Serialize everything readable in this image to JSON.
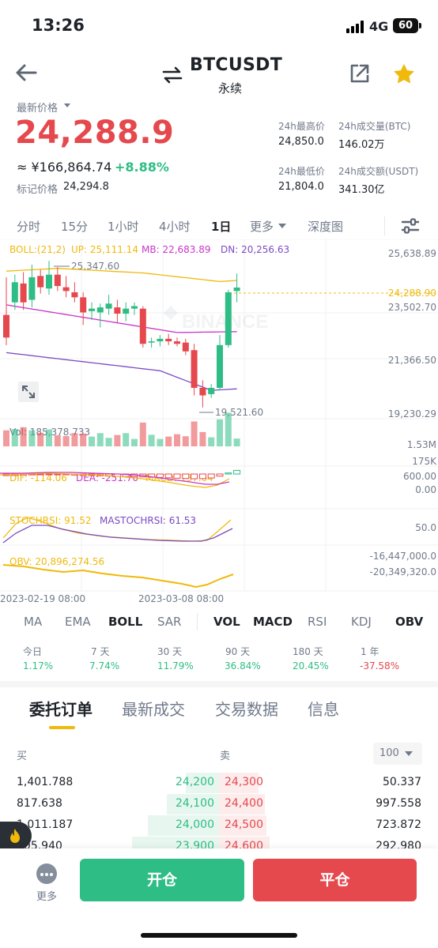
{
  "status": {
    "time": "13:26",
    "network": "4G",
    "battery": "60"
  },
  "header": {
    "pair": "BTCUSDT",
    "type": "永续"
  },
  "price": {
    "label": "最新价格",
    "last": "24,288.9",
    "cny": "≈ ¥166,864.74",
    "change": "+8.88%",
    "mark_label": "标记价格",
    "mark_value": "24,294.8"
  },
  "stats": {
    "high_label": "24h最高价",
    "high": "24,850.0",
    "vol_btc_label": "24h成交量(BTC)",
    "vol_btc": "146.02万",
    "low_label": "24h最低价",
    "low": "21,804.0",
    "vol_usdt_label": "24h成交额(USDT)",
    "vol_usdt": "341.30亿"
  },
  "timeframes": [
    "分时",
    "15分",
    "1小时",
    "4小时",
    "1日",
    "更多",
    "深度图"
  ],
  "chart": {
    "boll_label": "BOLL:(21,2)",
    "up": "UP: 25,111.14",
    "mb": "MB: 22,683.89",
    "dn": "DN: 20,256.63",
    "axis": [
      "25,638.89",
      "24,288.90",
      "23,502.70",
      "21,366.50",
      "19,230.29"
    ],
    "hi_annot": "25,347.60",
    "lo_annot": "19,521.60",
    "watermark": "BINANCE",
    "vol_label": "Vol: 185,378.733",
    "vol_axis": [
      "1.53M",
      "175K"
    ],
    "dif": "DIF: -114.06",
    "dea": "DEA: -251.70",
    "macd": "MACD: 137.64",
    "macd_axis": [
      "600.00",
      "0.00"
    ],
    "stoch": "STOCHRSI: 91.52",
    "mastoch": "MASTOCHRSI: 61.53",
    "stoch_axis": "50.0",
    "obv": "OBV: 20,896,274.56",
    "obv_axis": [
      "-16,447,000.0",
      "-20,349,320.0"
    ],
    "dates": [
      "2023-02-19 08:00",
      "2023-03-08 08:00"
    ],
    "colors": {
      "up": "#2ebd85",
      "down": "#e5484d",
      "boll_up": "#f0b90b",
      "boll_mb": "#c936c9",
      "boll_dn": "#7b4ac2"
    }
  },
  "chart_data": {
    "type": "candlestick",
    "title": "BTCUSDT 1日",
    "candles": [
      {
        "o": 23200,
        "h": 24700,
        "l": 22000,
        "c": 22300
      },
      {
        "o": 23700,
        "h": 24800,
        "l": 23400,
        "c": 24500
      },
      {
        "o": 24450,
        "h": 24900,
        "l": 23400,
        "c": 23700
      },
      {
        "o": 23800,
        "h": 25200,
        "l": 23500,
        "c": 24700
      },
      {
        "o": 24750,
        "h": 25000,
        "l": 24050,
        "c": 24300
      },
      {
        "o": 24250,
        "h": 25347.6,
        "l": 24000,
        "c": 24800
      },
      {
        "o": 24800,
        "h": 25100,
        "l": 24150,
        "c": 24350
      },
      {
        "o": 24300,
        "h": 24750,
        "l": 23900,
        "c": 24150
      },
      {
        "o": 24100,
        "h": 24500,
        "l": 23700,
        "c": 23900
      },
      {
        "o": 23900,
        "h": 24100,
        "l": 22800,
        "c": 23300
      },
      {
        "o": 23350,
        "h": 23700,
        "l": 23000,
        "c": 23450
      },
      {
        "o": 23300,
        "h": 23650,
        "l": 22700,
        "c": 23500
      },
      {
        "o": 23450,
        "h": 24000,
        "l": 23200,
        "c": 23650
      },
      {
        "o": 23500,
        "h": 23800,
        "l": 22900,
        "c": 23250
      },
      {
        "o": 23250,
        "h": 23700,
        "l": 22950,
        "c": 23450
      },
      {
        "o": 23450,
        "h": 23700,
        "l": 23200,
        "c": 23550
      },
      {
        "o": 23450,
        "h": 23550,
        "l": 21900,
        "c": 22050
      },
      {
        "o": 22100,
        "h": 22300,
        "l": 21900,
        "c": 22150
      },
      {
        "o": 22150,
        "h": 22400,
        "l": 21950,
        "c": 22250
      },
      {
        "o": 22250,
        "h": 22450,
        "l": 22000,
        "c": 22150
      },
      {
        "o": 22150,
        "h": 22300,
        "l": 21950,
        "c": 22050
      },
      {
        "o": 22100,
        "h": 22250,
        "l": 21600,
        "c": 21750
      },
      {
        "o": 21800,
        "h": 22050,
        "l": 20000,
        "c": 20300
      },
      {
        "o": 20300,
        "h": 20600,
        "l": 19521.6,
        "c": 20000
      },
      {
        "o": 20050,
        "h": 20450,
        "l": 19900,
        "c": 20300
      },
      {
        "o": 20300,
        "h": 22400,
        "l": 20200,
        "c": 22000
      },
      {
        "o": 22000,
        "h": 24200,
        "l": 21900,
        "c": 24100
      },
      {
        "o": 24150,
        "h": 24850,
        "l": 23700,
        "c": 24288.9
      }
    ],
    "volume_max": 1530000,
    "macd_hist": [
      -60,
      -55,
      -40,
      -35,
      -30,
      -25,
      -20,
      -30,
      -40,
      -55,
      -60,
      -70,
      -80,
      -90,
      -100,
      -105,
      -110,
      -120,
      -130,
      -145,
      -160,
      -170,
      -180,
      -175,
      -150,
      -80,
      40,
      137.64
    ],
    "ylim": [
      19230.29,
      25638.89
    ]
  },
  "indicators": [
    "MA",
    "EMA",
    "BOLL",
    "SAR",
    "VOL",
    "MACD",
    "RSI",
    "KDJ",
    "OBV"
  ],
  "performance": [
    {
      "label": "今日",
      "value": "1.17%",
      "dir": "up"
    },
    {
      "label": "7 天",
      "value": "7.74%",
      "dir": "up"
    },
    {
      "label": "30 天",
      "value": "11.79%",
      "dir": "up"
    },
    {
      "label": "90 天",
      "value": "36.84%",
      "dir": "up"
    },
    {
      "label": "180 天",
      "value": "20.45%",
      "dir": "up"
    },
    {
      "label": "1 年",
      "value": "-37.58%",
      "dir": "down"
    }
  ],
  "bottom_tabs": [
    "委托订单",
    "最新成交",
    "交易数据",
    "信息"
  ],
  "orderbook": {
    "buy_label": "买",
    "sell_label": "卖",
    "depth": "100",
    "rows": [
      {
        "bq": "1,401.788",
        "bp": "24,200",
        "ap": "24,300",
        "aq": "50.337",
        "bw": 42,
        "aw": 50
      },
      {
        "bq": "817.638",
        "bp": "24,100",
        "ap": "24,400",
        "aq": "997.558",
        "bw": 66,
        "aw": 58
      },
      {
        "bq": "1,011.187",
        "bp": "24,000",
        "ap": "24,500",
        "aq": "723.872",
        "bw": 90,
        "aw": 60
      },
      {
        "bq": "305.940",
        "bp": "23,900",
        "ap": "24,600",
        "aq": "292.980",
        "bw": 110,
        "aw": 64
      }
    ]
  },
  "actions": {
    "more": "更多",
    "open": "开仓",
    "close": "平仓"
  }
}
